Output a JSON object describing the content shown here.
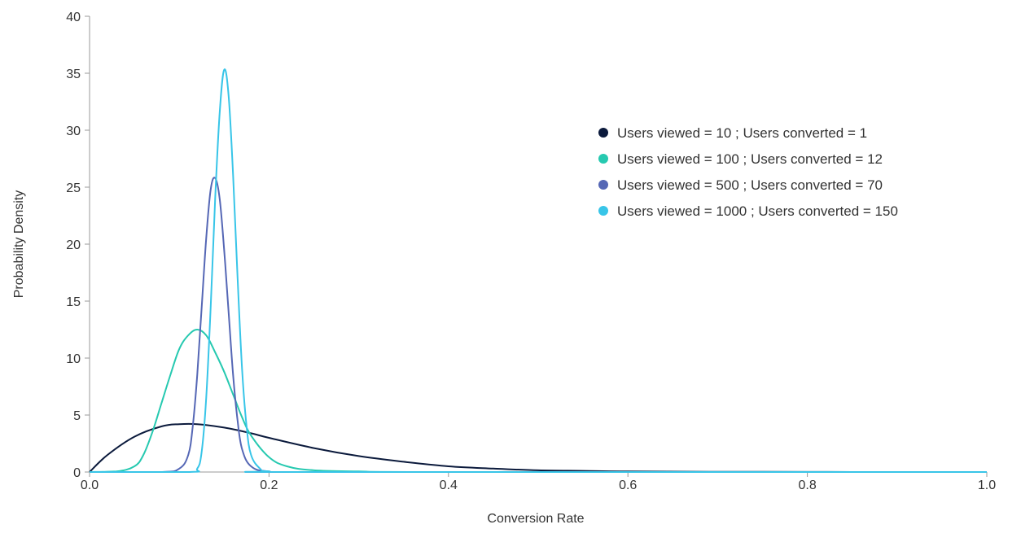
{
  "chart_data": {
    "type": "line",
    "title": "",
    "xlabel": "Conversion Rate",
    "ylabel": "Probability Density",
    "xlim": [
      0,
      1.0
    ],
    "ylim": [
      0,
      40
    ],
    "x_ticks": [
      "0.0",
      "0.2",
      "0.4",
      "0.6",
      "0.8",
      "1.0"
    ],
    "x_tick_values": [
      0,
      0.2,
      0.4,
      0.6,
      0.8,
      1.0
    ],
    "y_ticks": [
      "0",
      "5",
      "10",
      "15",
      "20",
      "25",
      "30",
      "35",
      "40"
    ],
    "y_tick_values": [
      0,
      5,
      10,
      15,
      20,
      25,
      30,
      35,
      40
    ],
    "grid": false,
    "legend_position": "top-right",
    "series": [
      {
        "name": "Users viewed = 10 ; Users converted = 1",
        "color": "#0b1a3c",
        "viewed": 10,
        "converted": 1,
        "x": [
          0,
          0.02,
          0.05,
          0.08,
          0.1,
          0.12,
          0.15,
          0.18,
          0.2,
          0.25,
          0.3,
          0.35,
          0.4,
          0.45,
          0.5,
          0.55,
          0.6,
          0.7,
          0.8,
          0.9,
          1.0
        ],
        "y": [
          0,
          1.5,
          3.1,
          4.0,
          4.2,
          4.2,
          3.9,
          3.4,
          3.0,
          2.1,
          1.4,
          0.9,
          0.5,
          0.3,
          0.15,
          0.1,
          0.05,
          0.02,
          0.01,
          0,
          0
        ]
      },
      {
        "name": "Users viewed = 100 ; Users converted = 12",
        "color": "#26c9b0",
        "viewed": 100,
        "converted": 12,
        "x": [
          0,
          0.03,
          0.05,
          0.06,
          0.07,
          0.08,
          0.09,
          0.1,
          0.11,
          0.12,
          0.13,
          0.14,
          0.15,
          0.16,
          0.17,
          0.18,
          0.2,
          0.22,
          0.25,
          0.3,
          0.4,
          1.0
        ],
        "y": [
          0,
          0.05,
          0.5,
          1.5,
          3.5,
          6.0,
          8.5,
          10.8,
          12.0,
          12.5,
          12.0,
          10.5,
          8.8,
          6.8,
          4.8,
          3.2,
          1.3,
          0.5,
          0.15,
          0.05,
          0,
          0
        ]
      },
      {
        "name": "Users viewed = 500 ; Users converted = 70",
        "color": "#5567b5",
        "viewed": 500,
        "converted": 70,
        "x": [
          0,
          0.08,
          0.1,
          0.11,
          0.115,
          0.12,
          0.125,
          0.13,
          0.135,
          0.14,
          0.145,
          0.15,
          0.155,
          0.16,
          0.165,
          0.17,
          0.18,
          0.2,
          0.25,
          1.0
        ],
        "y": [
          0,
          0,
          0.3,
          1.5,
          4.0,
          8.5,
          14.5,
          20.5,
          24.8,
          25.8,
          24.0,
          19.5,
          14.0,
          8.5,
          4.5,
          2.0,
          0.5,
          0.05,
          0,
          0
        ]
      },
      {
        "name": "Users viewed = 1000 ; Users converted = 150",
        "color": "#38c5e8",
        "viewed": 1000,
        "converted": 150,
        "x": [
          0,
          0.11,
          0.12,
          0.125,
          0.13,
          0.135,
          0.14,
          0.145,
          0.15,
          0.155,
          0.16,
          0.165,
          0.17,
          0.175,
          0.18,
          0.19,
          0.2,
          0.25,
          1.0
        ],
        "y": [
          0,
          0,
          0.3,
          1.8,
          6.5,
          14.5,
          24.0,
          31.5,
          35.3,
          33.0,
          26.0,
          17.0,
          9.0,
          4.0,
          1.5,
          0.3,
          0.05,
          0,
          0
        ]
      }
    ]
  }
}
